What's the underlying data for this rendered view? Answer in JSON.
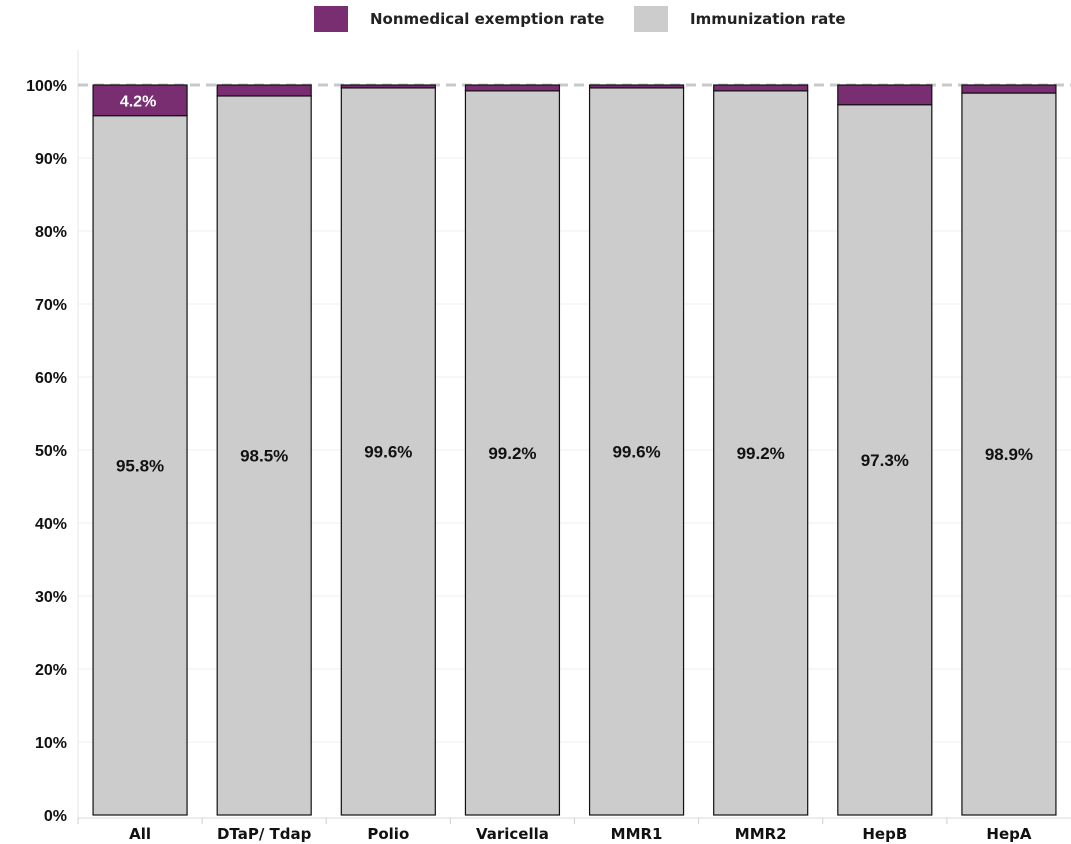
{
  "legend": {
    "exemption_label": "Nonmedical exemption rate",
    "immunization_label": "Immunization rate"
  },
  "colors": {
    "exemption": "#7a2e72",
    "immunization": "#cccccc",
    "reference_line": "#c9c9c9",
    "bar_outline": "#111111"
  },
  "chart_data": {
    "type": "bar",
    "stacked": true,
    "categories": [
      "All",
      "DTaP/ Tdap",
      "Polio",
      "Varicella",
      "MMR1",
      "MMR2",
      "HepB",
      "HepA"
    ],
    "series": [
      {
        "name": "Immunization rate",
        "values": [
          95.8,
          98.5,
          99.6,
          99.2,
          99.6,
          99.2,
          97.3,
          98.9
        ],
        "labels": [
          "95.8%",
          "98.5%",
          "99.6%",
          "99.2%",
          "99.6%",
          "99.2%",
          "97.3%",
          "98.9%"
        ]
      },
      {
        "name": "Nonmedical exemption rate",
        "values": [
          4.2,
          1.5,
          0.4,
          0.8,
          0.4,
          0.8,
          2.7,
          1.1
        ],
        "labels": [
          "4.2%",
          "",
          "",
          "",
          "",
          "",
          "",
          ""
        ]
      }
    ],
    "yticks": [
      "0%",
      "10%",
      "20%",
      "30%",
      "40%",
      "50%",
      "60%",
      "70%",
      "80%",
      "90%",
      "100%"
    ],
    "ylim": [
      0,
      100
    ],
    "reference_line": 100,
    "grid": true,
    "legend_position": "top-center"
  }
}
